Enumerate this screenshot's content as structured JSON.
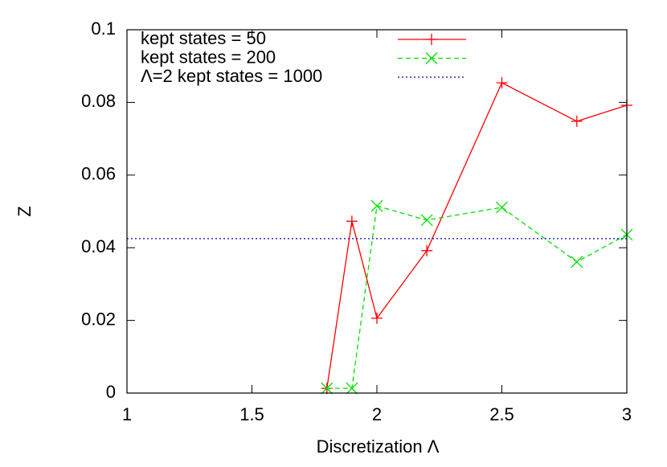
{
  "chart_data": {
    "type": "line",
    "xlabel": "Discretization Λ",
    "ylabel": "Z",
    "xlim": [
      1,
      3
    ],
    "xticks": [
      1,
      1.5,
      2,
      2.5,
      3
    ],
    "ylim": [
      0,
      0.1
    ],
    "yticks": [
      0,
      0.02,
      0.04,
      0.06,
      0.08,
      0.1
    ],
    "legend": "top-left",
    "series": [
      {
        "name": "kept states = 50",
        "color": "#ff0000",
        "marker": "plus",
        "dash": "solid",
        "x": [
          1.8,
          1.9,
          2.0,
          2.2,
          2.5,
          2.8,
          3.0
        ],
        "values": [
          0.0013,
          0.0473,
          0.0206,
          0.0392,
          0.0854,
          0.0748,
          0.0792
        ]
      },
      {
        "name": "kept states = 200",
        "color": "#00e000",
        "marker": "cross",
        "dash": "dashed",
        "x": [
          1.8,
          1.9,
          2.0,
          2.2,
          2.5,
          2.8,
          3.0
        ],
        "values": [
          0.0013,
          0.0013,
          0.0515,
          0.0476,
          0.0511,
          0.0361,
          0.0436
        ]
      },
      {
        "name": "Λ=2 kept states = 1000",
        "color": "#0000c0",
        "marker": "none",
        "dash": "dotted",
        "x": [
          1,
          3
        ],
        "values": [
          0.0425,
          0.0425
        ]
      }
    ]
  }
}
